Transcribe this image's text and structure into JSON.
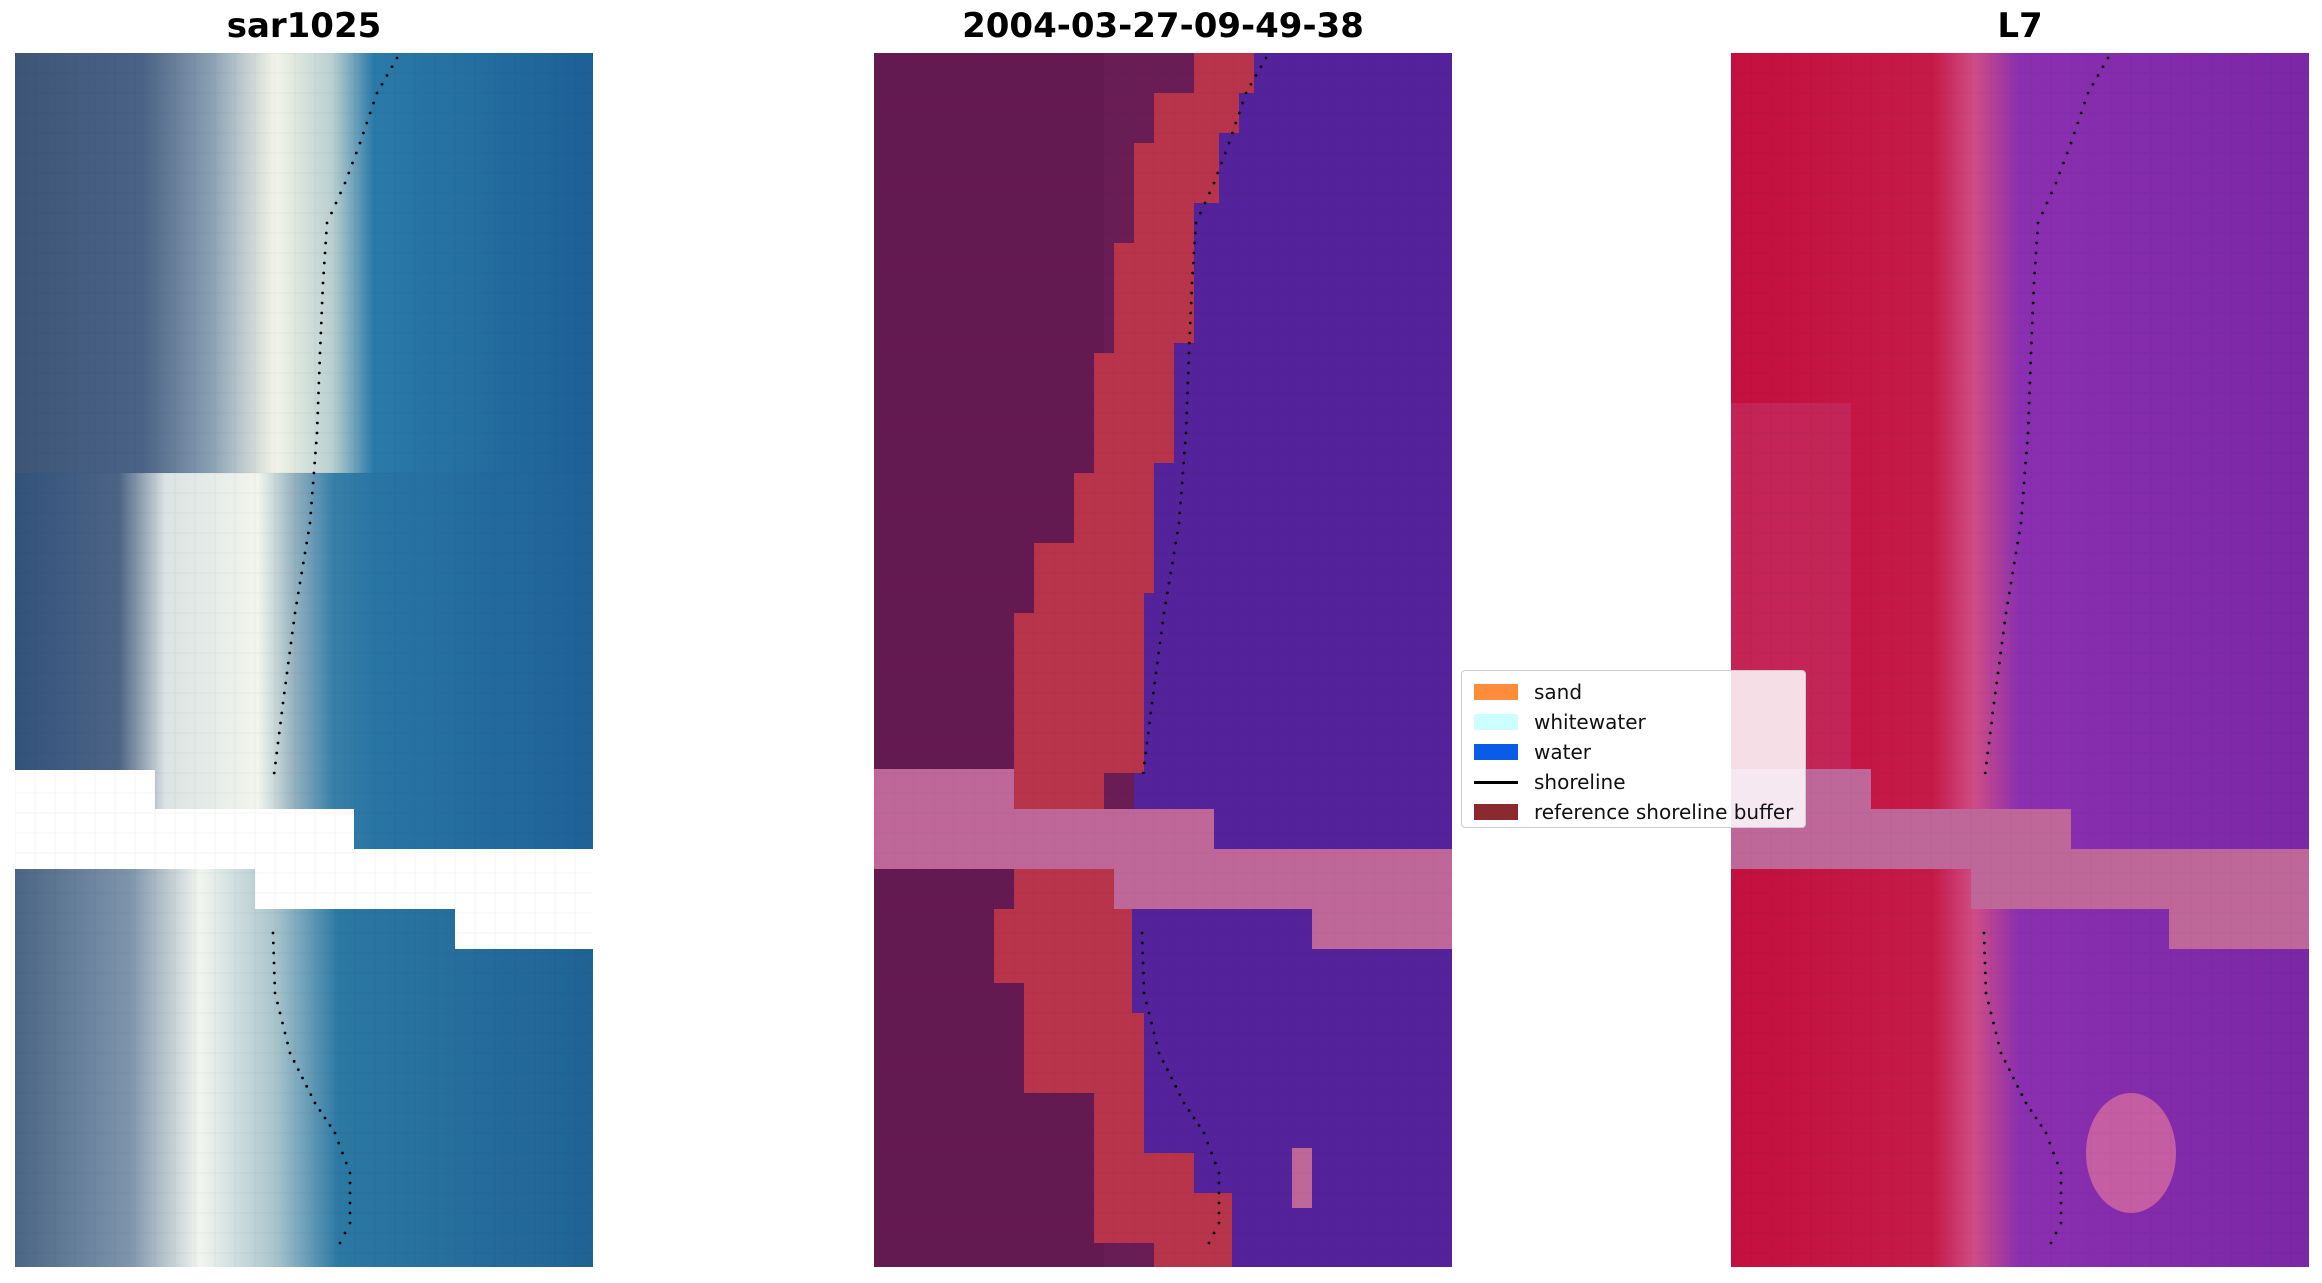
{
  "titles": {
    "left": "sar1025",
    "middle": "2004-03-27-09-49-38",
    "right": "L7"
  },
  "legend": [
    {
      "label": "sand",
      "color": "#ff8c3a",
      "kind": "patch"
    },
    {
      "label": "whitewater",
      "color": "#ccffff",
      "kind": "patch"
    },
    {
      "label": "water",
      "color": "#0a5be6",
      "kind": "patch"
    },
    {
      "label": "shoreline",
      "color": "#000000",
      "kind": "line"
    },
    {
      "label": "reference shoreline buffer",
      "color": "#8b2a2e",
      "kind": "patch"
    }
  ],
  "colors": {
    "nodata_band": "#c0679a",
    "sar_land": "#3e5878",
    "sar_beach": "#e8f0ea",
    "sar_water": "#1e6699",
    "class_land": "#6a1d55",
    "class_buffer": "#b8344a",
    "class_water": "#54229a",
    "l7_land": "#c3113e",
    "l7_water": "#7a25a8"
  },
  "icons": [
    "shoreline-dots"
  ]
}
